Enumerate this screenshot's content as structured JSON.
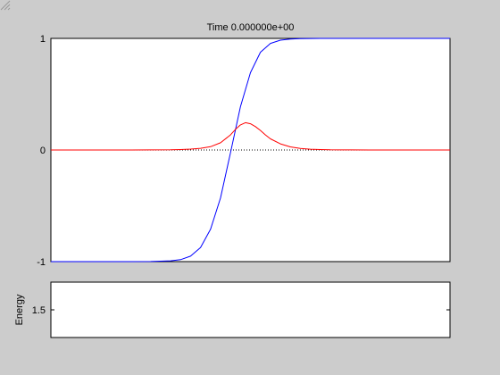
{
  "figure": {
    "background": "#cccccc"
  },
  "chart_data": [
    {
      "type": "line",
      "title": "Time 0.000000e+00",
      "xlabel": "",
      "ylabel": "",
      "xlim": [
        -10,
        10
      ],
      "ylim": [
        -1,
        1
      ],
      "yticks": [
        {
          "value": -1,
          "label": "-1"
        },
        {
          "value": 0,
          "label": "0"
        },
        {
          "value": 1,
          "label": "1"
        }
      ],
      "xtick_labels": [],
      "grid": false,
      "zero_line": {
        "y": 0,
        "style": "dotted",
        "color": "#000000"
      },
      "series": [
        {
          "color": "#0000ff",
          "x": [
            -10,
            -6,
            -5,
            -4,
            -3.5,
            -3,
            -2.5,
            -2,
            -1.5,
            -1,
            -0.5,
            0,
            0.5,
            1,
            1.5,
            2,
            2.5,
            3,
            3.5,
            4,
            5,
            6,
            10
          ],
          "y": [
            -1.0,
            -1.0,
            -0.999,
            -0.993,
            -0.982,
            -0.951,
            -0.874,
            -0.71,
            -0.429,
            -0.026,
            0.388,
            0.693,
            0.876,
            0.955,
            0.984,
            0.994,
            0.998,
            0.999,
            1.0,
            1.0,
            1.0,
            1.0,
            1.0
          ]
        },
        {
          "color": "#ff0000",
          "x": [
            -10,
            -6,
            -5,
            -4,
            -3.5,
            -3,
            -2.5,
            -2,
            -1.5,
            -1,
            -0.75,
            -0.5,
            -0.25,
            0,
            0.25,
            0.5,
            0.75,
            1,
            1.5,
            2,
            2.5,
            3,
            3.5,
            4,
            5,
            6,
            10
          ],
          "y": [
            0.0,
            0.0,
            0.001,
            0.002,
            0.004,
            0.008,
            0.015,
            0.03,
            0.065,
            0.135,
            0.185,
            0.225,
            0.245,
            0.235,
            0.21,
            0.175,
            0.135,
            0.1,
            0.055,
            0.028,
            0.014,
            0.007,
            0.004,
            0.002,
            0.001,
            0.0,
            0.0
          ]
        }
      ]
    },
    {
      "type": "line",
      "title": "",
      "xlabel": "",
      "ylabel": "Energy",
      "ylim": [
        1,
        2
      ],
      "yticks": [
        {
          "value": 1.5,
          "label": "1.5"
        }
      ],
      "xtick_labels": [],
      "grid": false,
      "series": []
    }
  ]
}
